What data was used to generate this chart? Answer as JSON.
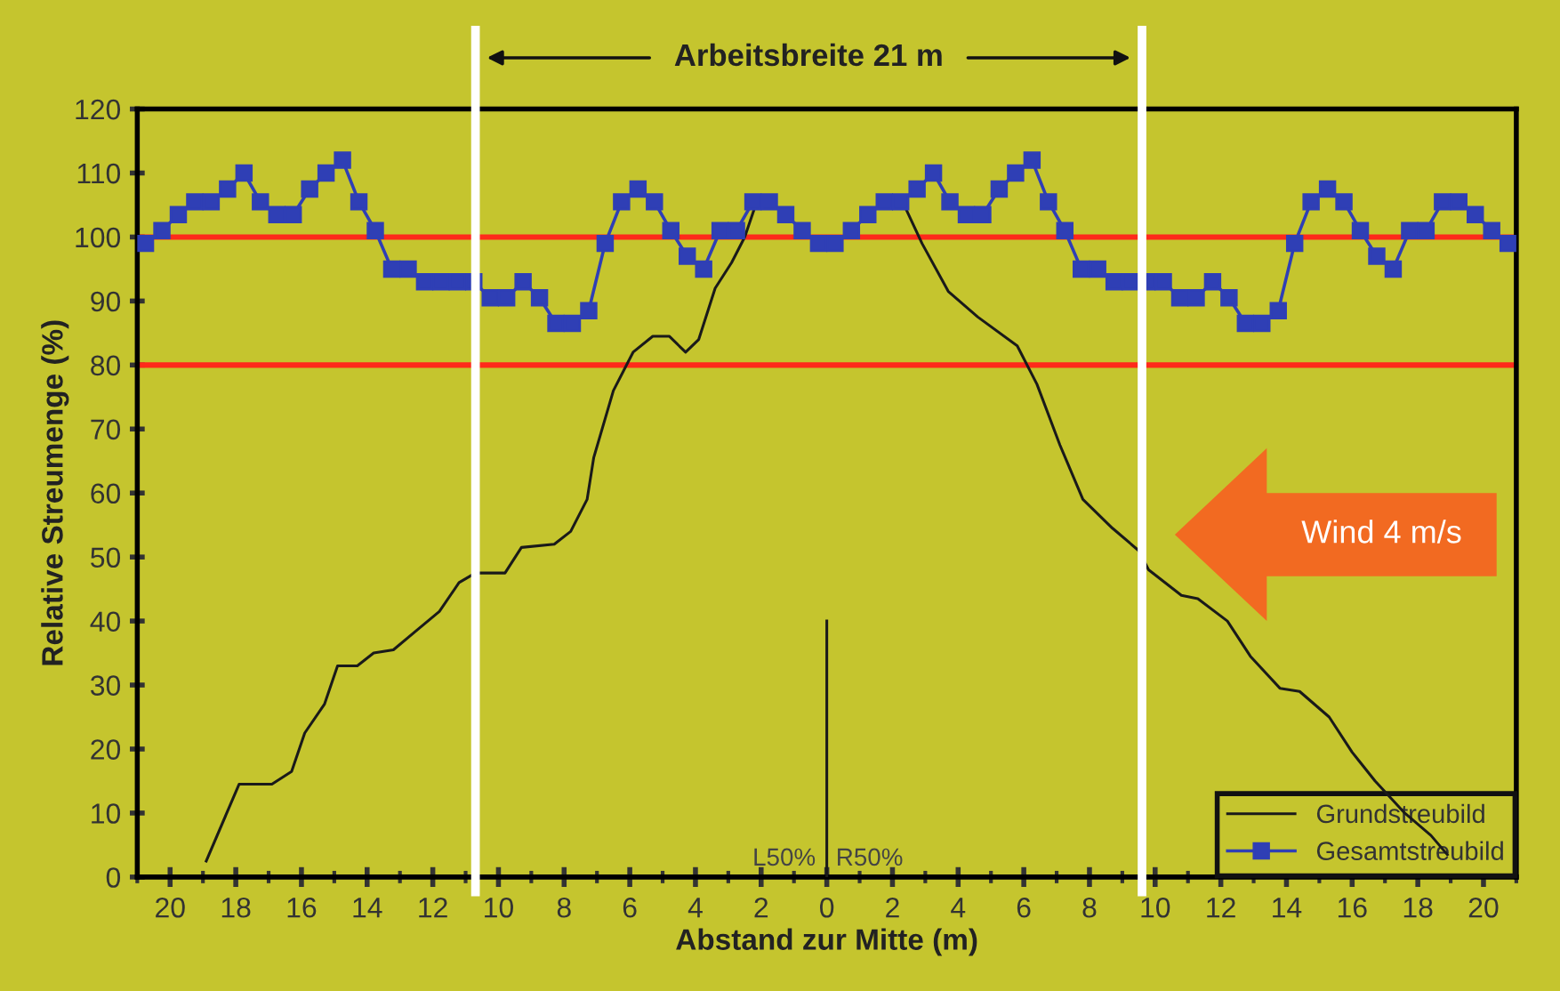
{
  "chart_data": {
    "type": "line",
    "xlabel": "Abstand zur Mitte (m)",
    "ylabel": "Relative Streumenge (%)",
    "xlim": [
      -21,
      21
    ],
    "ylim": [
      0,
      120
    ],
    "xticks": [
      {
        "value": -21,
        "label": null
      },
      {
        "value": -20,
        "label": "20"
      },
      {
        "value": -19,
        "label": null
      },
      {
        "value": -18,
        "label": "18"
      },
      {
        "value": -17,
        "label": null
      },
      {
        "value": -16,
        "label": "16"
      },
      {
        "value": -15,
        "label": null
      },
      {
        "value": -14,
        "label": "14"
      },
      {
        "value": -13,
        "label": null
      },
      {
        "value": -12,
        "label": "12"
      },
      {
        "value": -11,
        "label": null
      },
      {
        "value": -10,
        "label": "10"
      },
      {
        "value": -9,
        "label": null
      },
      {
        "value": -8,
        "label": "8"
      },
      {
        "value": -7,
        "label": null
      },
      {
        "value": -6,
        "label": "6"
      },
      {
        "value": -5,
        "label": null
      },
      {
        "value": -4,
        "label": "4"
      },
      {
        "value": -3,
        "label": null
      },
      {
        "value": -2,
        "label": "2"
      },
      {
        "value": -1,
        "label": null
      },
      0,
      {
        "value": 1,
        "label": null
      },
      2,
      {
        "value": 3,
        "label": null
      },
      4,
      {
        "value": 5,
        "label": null
      },
      6,
      {
        "value": 7,
        "label": null
      },
      8,
      {
        "value": 9,
        "label": null
      },
      10,
      {
        "value": 11,
        "label": null
      },
      12,
      {
        "value": 13,
        "label": null
      },
      14,
      {
        "value": 15,
        "label": null
      },
      16,
      {
        "value": 17,
        "label": null
      },
      18,
      {
        "value": 19,
        "label": null
      },
      20,
      {
        "value": 21,
        "label": null
      }
    ],
    "yticks": [
      0,
      10,
      20,
      30,
      40,
      50,
      60,
      70,
      80,
      90,
      100,
      110,
      120
    ],
    "grid": false,
    "legend": "bottom right",
    "series": [
      {
        "name": "Grundstreubild",
        "color": "#1a1a1a",
        "marker": "none",
        "x": [
          -18.9,
          -17.9,
          -16.9,
          -16.3,
          -15.9,
          -15.3,
          -14.9,
          -14.3,
          -13.8,
          -13.2,
          -12.5,
          -11.8,
          -11.2,
          -10.7,
          -9.8,
          -9.3,
          -8.3,
          -7.8,
          -7.3,
          -7.1,
          -6.5,
          -5.9,
          -5.3,
          -4.8,
          -4.3,
          -3.9,
          -3.4,
          -2.9,
          -2.5,
          -2.2,
          0,
          1.7,
          2.4,
          2.9,
          3.7,
          4.6,
          5.8,
          6.4,
          7.1,
          7.8,
          8.7,
          9.5,
          9.8,
          10.8,
          11.3,
          12.2,
          12.9,
          13.8,
          14.4,
          15.3,
          16.0,
          16.7,
          17.6,
          18.4,
          18.9
        ],
        "values": [
          2.5,
          14.5,
          14.5,
          16.5,
          22.5,
          27,
          33,
          33,
          35,
          35.5,
          38.5,
          41.5,
          46,
          47.5,
          47.5,
          51.5,
          52,
          54,
          59,
          65.5,
          76,
          82,
          84.5,
          84.5,
          82,
          84,
          92,
          96,
          100,
          104.5,
          null,
          null,
          104.5,
          99,
          91.5,
          87.5,
          83,
          77,
          67.5,
          59,
          54.5,
          51,
          48,
          44,
          43.5,
          40,
          34.5,
          29.5,
          29,
          25,
          19.5,
          15,
          10,
          6.5,
          3.5
        ]
      },
      {
        "name": "Gesamtstreubild",
        "color": "#2f3fb5",
        "marker": "square",
        "x": [
          -20.75,
          -20.25,
          -19.75,
          -19.25,
          -18.75,
          -18.25,
          -17.75,
          -17.25,
          -16.75,
          -16.25,
          -15.75,
          -15.25,
          -14.75,
          -14.25,
          -13.75,
          -13.25,
          -12.75,
          -12.25,
          -11.75,
          -11.25,
          -10.75,
          -10.25,
          -9.75,
          -9.25,
          -8.75,
          -8.25,
          -7.75,
          -7.25,
          -6.75,
          -6.25,
          -5.75,
          -5.25,
          -4.75,
          -4.25,
          -3.75,
          -3.25,
          -2.75,
          -2.25,
          -1.75,
          -1.25,
          -0.75,
          -0.25,
          0.25,
          0.75,
          1.25,
          1.75,
          2.25,
          2.75,
          3.25,
          3.75,
          4.25,
          4.75,
          5.25,
          5.75,
          6.25,
          6.75,
          7.25,
          7.75,
          8.25,
          8.75,
          9.25,
          9.75,
          10.25,
          10.75,
          11.25,
          11.75,
          12.25,
          12.75,
          13.25,
          13.75,
          14.25,
          14.75,
          15.25,
          15.75,
          16.25,
          16.75,
          17.25,
          17.75,
          18.25,
          18.75,
          19.25,
          19.75,
          20.25,
          20.75
        ],
        "values": [
          99,
          101,
          103.5,
          105.5,
          105.5,
          107.5,
          110,
          105.5,
          103.5,
          103.5,
          107.5,
          110,
          112,
          105.5,
          101,
          95,
          95,
          93,
          93,
          93,
          93,
          90.5,
          90.5,
          93,
          90.5,
          86.5,
          86.5,
          88.5,
          99,
          105.5,
          107.5,
          105.5,
          101,
          97,
          95,
          101,
          101,
          105.5,
          105.5,
          103.5,
          101,
          99,
          99,
          101,
          103.5,
          105.5,
          105.5,
          107.5,
          110,
          105.5,
          103.5,
          103.5,
          107.5,
          110,
          112,
          105.5,
          101,
          95,
          95,
          93,
          93,
          93,
          93,
          90.5,
          90.5,
          93,
          90.5,
          86.5,
          86.5,
          88.5,
          99,
          105.5,
          107.5,
          105.5,
          101,
          97,
          95,
          101,
          101,
          105.5,
          105.5,
          103.5,
          101,
          99
        ]
      },
      {
        "color": "#1a1a1a",
        "marker": "none",
        "x": [
          0,
          0
        ],
        "values": [
          0,
          40
        ]
      }
    ],
    "ref_lines": [
      {
        "axis": "y",
        "value": 100,
        "color": "#ff2a1a"
      },
      {
        "axis": "y",
        "value": 80,
        "color": "#ff2a1a"
      },
      {
        "axis": "x",
        "value": -10.7,
        "color": "#ffffff"
      },
      {
        "axis": "x",
        "value": 9.6,
        "color": "#ffffff"
      }
    ],
    "annotations": [
      "Arbeitsbreite 21 m",
      "Wind 4 m/s",
      "L50%",
      "R50%"
    ]
  }
}
